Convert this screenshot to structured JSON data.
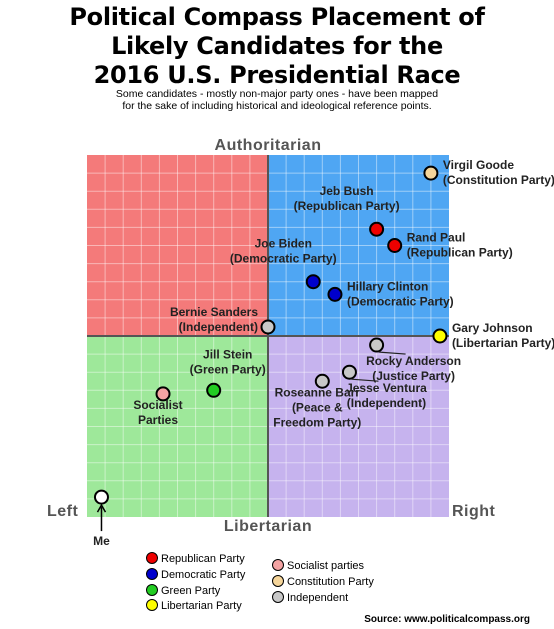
{
  "title_lines": [
    "Political Compass Placement of",
    "Likely Candidates for the",
    "2016 U.S. Presidential Race"
  ],
  "subtitle_lines": [
    "Some candidates - mostly non-major party ones - have been mapped",
    "for the sake of including historical and ideological reference points."
  ],
  "source": "Source: www.politicalcompass.org",
  "colors": {
    "authoritarian_left": "#f47a7a",
    "authoritarian_right": "#4fa6f3",
    "libertarian_left": "#9ee89a",
    "libertarian_right": "#c6b3ee",
    "grid": "#ffffff",
    "axis": "#555555"
  },
  "chart_data": {
    "type": "scatter",
    "title": "Political Compass Placement of Likely Candidates for the 2016 U.S. Presidential Race",
    "xlim": [
      -10,
      10
    ],
    "ylim": [
      -10,
      10
    ],
    "grid": true,
    "axis_labels": {
      "top": "Authoritarian",
      "bottom": "Libertarian",
      "left": "Left",
      "right": "Right"
    },
    "points": [
      {
        "label_lines": [
          "Virgil Goode",
          "(Constitution Party)"
        ],
        "x": 9.0,
        "y": 9.0,
        "color": "#f5d59a",
        "label_side": "right"
      },
      {
        "label_lines": [
          "Jeb Bush",
          "(Republican Party)"
        ],
        "x": 6.0,
        "y": 5.9,
        "color": "#ee0000",
        "label_side": "above-left"
      },
      {
        "label_lines": [
          "Rand Paul",
          "(Republican Party)"
        ],
        "x": 7.0,
        "y": 5.0,
        "color": "#ee0000",
        "label_side": "right"
      },
      {
        "label_lines": [
          "Joe Biden",
          "(Democratic Party)"
        ],
        "x": 2.5,
        "y": 3.0,
        "color": "#0000cc",
        "label_side": "above-left"
      },
      {
        "label_lines": [
          "Hillary Clinton",
          "(Democratic Party)"
        ],
        "x": 3.7,
        "y": 2.3,
        "color": "#0000cc",
        "label_side": "right"
      },
      {
        "label_lines": [
          "Bernie Sanders",
          "(Independent)"
        ],
        "x": 0.0,
        "y": 0.5,
        "color": "#c8c8c8",
        "label_side": "left"
      },
      {
        "label_lines": [
          "Gary Johnson",
          "(Libertarian Party)"
        ],
        "x": 9.5,
        "y": 0.0,
        "color": "#ffff00",
        "label_side": "right"
      },
      {
        "label_lines": [
          "Rocky Anderson",
          "(Justice Party)"
        ],
        "x": 6.0,
        "y": -0.5,
        "color": "#c8c8c8",
        "label_side": "below-right"
      },
      {
        "label_lines": [
          "Jill Stein",
          "(Green Party)"
        ],
        "x": -3.0,
        "y": -3.0,
        "color": "#22cc22",
        "label_side": "above-right"
      },
      {
        "label_lines": [
          "Socialist",
          "Parties"
        ],
        "x": -5.8,
        "y": -3.2,
        "color": "#f4a3a3",
        "label_side": "below"
      },
      {
        "label_lines": [
          "Roseanne Barr",
          "(Peace &",
          "Freedom Party)"
        ],
        "x": 3.0,
        "y": -2.5,
        "color": "#c8c8c8",
        "label_side": "below"
      },
      {
        "label_lines": [
          "Jesse Ventura",
          "(Independent)"
        ],
        "x": 4.5,
        "y": -2.0,
        "color": "#c8c8c8",
        "label_side": "below-right"
      },
      {
        "label_lines": [
          "Me"
        ],
        "x": -9.2,
        "y": -8.9,
        "color": "#ffffff",
        "label_side": "arrow-below"
      }
    ]
  },
  "legend": [
    {
      "label": "Republican Party",
      "color": "#ee0000"
    },
    {
      "label": "Democratic Party",
      "color": "#0000cc"
    },
    {
      "label": "Green Party",
      "color": "#22cc22"
    },
    {
      "label": "Libertarian Party",
      "color": "#ffff00"
    },
    {
      "label": "Socialist parties",
      "color": "#f4a3a3"
    },
    {
      "label": "Constitution Party",
      "color": "#f5d59a"
    },
    {
      "label": "Independent",
      "color": "#c8c8c8"
    }
  ]
}
